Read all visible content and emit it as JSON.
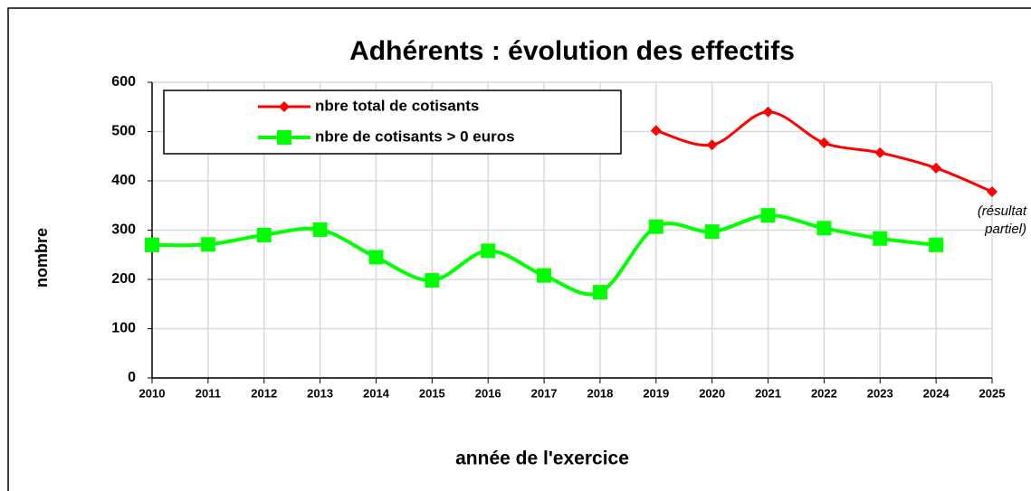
{
  "chart_data": {
    "type": "line",
    "title": "Adhérents : évolution des effectifs",
    "x_label": "année de l'exercice",
    "y_label": "nombre",
    "x": [
      2010,
      2011,
      2012,
      2013,
      2014,
      2015,
      2016,
      2017,
      2018,
      2019,
      2020,
      2021,
      2022,
      2023,
      2024,
      2025
    ],
    "xlim": [
      2010,
      2025
    ],
    "series": [
      {
        "name": "nbre total de cotisants",
        "color": "#ff0000",
        "marker": "diamond",
        "values": [
          null,
          null,
          null,
          null,
          null,
          null,
          null,
          null,
          null,
          502,
          473,
          540,
          477,
          457,
          426,
          378
        ]
      },
      {
        "name": "nbre de cotisants > 0 euros",
        "color": "#00ff00",
        "marker": "square",
        "values": [
          270,
          271,
          290,
          301,
          245,
          198,
          258,
          208,
          174,
          307,
          297,
          330,
          304,
          283,
          270,
          null
        ]
      }
    ],
    "ylim": [
      0,
      600
    ],
    "yticks": [
      0,
      100,
      200,
      300,
      400,
      500,
      600
    ],
    "grid": true,
    "smooth": true,
    "annotation": [
      "(résultat",
      "partiel)"
    ]
  }
}
